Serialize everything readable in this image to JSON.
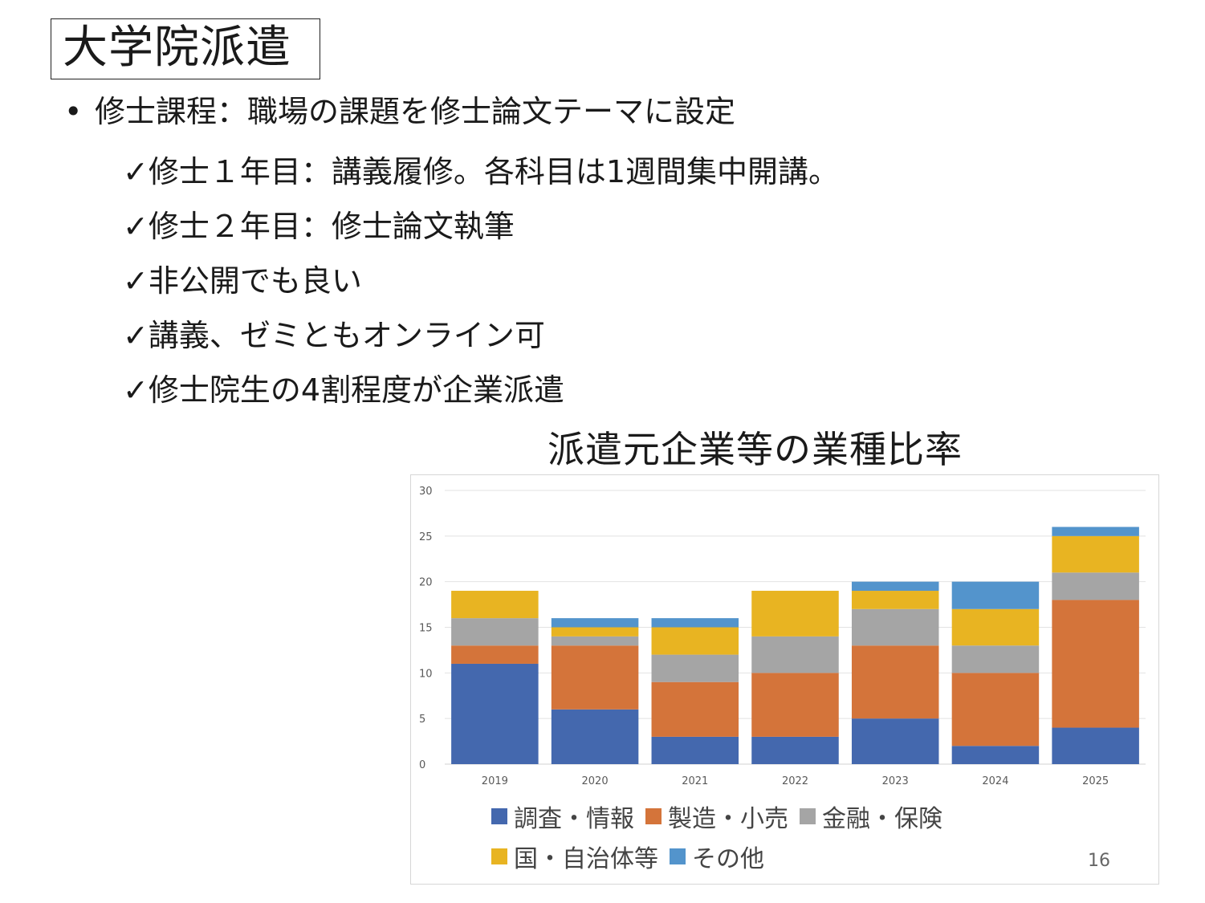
{
  "slide": {
    "title": "大学院派遣",
    "bullet_main": "修士課程：職場の課題を修士論文テーマに設定",
    "sub_bullets": [
      "✓修士１年目：講義履修。各科目は1週間集中開講。",
      "✓修士２年目：修士論文執筆",
      "✓非公開でも良い",
      "✓講義、ゼミともオンライン可",
      "✓修士院生の4割程度が企業派遣"
    ],
    "chart_heading": "派遣元企業等の業種比率",
    "page_number": "16"
  },
  "chart_data": {
    "type": "bar",
    "stacked": true,
    "title": "",
    "categories": [
      "2019",
      "2020",
      "2021",
      "2022",
      "2023",
      "2024",
      "2025"
    ],
    "series": [
      {
        "name": "調査・情報",
        "color": "#4468AE",
        "values": [
          11,
          6,
          3,
          3,
          5,
          2,
          4
        ]
      },
      {
        "name": "製造・小売",
        "color": "#D4743A",
        "values": [
          2,
          7,
          6,
          7,
          8,
          8,
          14
        ]
      },
      {
        "name": "金融・保険",
        "color": "#A5A5A5",
        "values": [
          3,
          1,
          3,
          4,
          4,
          3,
          3
        ]
      },
      {
        "name": "国・自治体等",
        "color": "#E8B422",
        "values": [
          3,
          1,
          3,
          5,
          2,
          4,
          4
        ]
      },
      {
        "name": "その他",
        "color": "#5394CC",
        "values": [
          0,
          1,
          1,
          0,
          1,
          3,
          1
        ]
      }
    ],
    "ylim": [
      0,
      30
    ],
    "yticks": [
      0,
      5,
      10,
      15,
      20,
      25,
      30
    ],
    "grid": true,
    "legend_position": "bottom"
  }
}
